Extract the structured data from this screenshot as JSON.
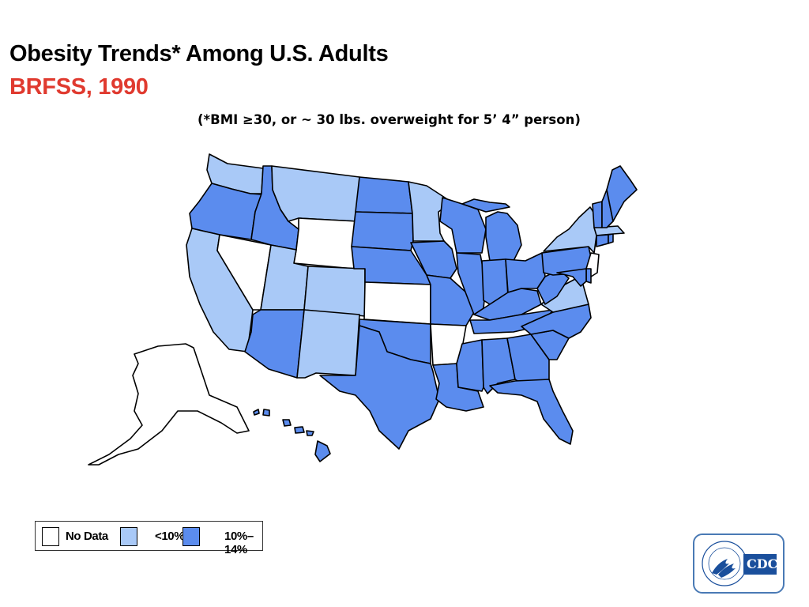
{
  "title": "Obesity Trends* Among U.S. Adults",
  "subtitle": "BRFSS, 1990",
  "note": "(*BMI ≥30, or ~ 30 lbs. overweight for 5’ 4” person)",
  "colors": {
    "title": "#000000",
    "subtitle": "#e03a2f",
    "no_data": "#ffffff",
    "lt10": "#a9c9f7",
    "p10_14": "#5b8cee",
    "border": "#000000",
    "logo_blue": "#1a4f9c"
  },
  "legend": [
    {
      "key": "no_data",
      "label": "No Data"
    },
    {
      "key": "lt10",
      "label": "<10%"
    },
    {
      "key": "p10_14",
      "label": "10%–14%"
    }
  ],
  "states": {
    "WA": "lt10",
    "OR": "p10_14",
    "CA": "lt10",
    "NV": "no_data",
    "ID": "p10_14",
    "MT": "lt10",
    "WY": "no_data",
    "UT": "lt10",
    "CO": "lt10",
    "AZ": "p10_14",
    "NM": "lt10",
    "ND": "p10_14",
    "SD": "p10_14",
    "NE": "p10_14",
    "KS": "no_data",
    "OK": "p10_14",
    "TX": "p10_14",
    "MN": "lt10",
    "IA": "p10_14",
    "MO": "p10_14",
    "AR": "no_data",
    "LA": "p10_14",
    "WI": "p10_14",
    "IL": "p10_14",
    "MI": "p10_14",
    "IN": "p10_14",
    "OH": "p10_14",
    "KY": "p10_14",
    "TN": "p10_14",
    "MS": "p10_14",
    "AL": "p10_14",
    "GA": "p10_14",
    "FL": "p10_14",
    "SC": "p10_14",
    "NC": "p10_14",
    "VA": "lt10",
    "WV": "p10_14",
    "PA": "p10_14",
    "NY": "lt10",
    "VT": "p10_14",
    "NH": "p10_14",
    "ME": "p10_14",
    "MA": "lt10",
    "RI": "p10_14",
    "CT": "p10_14",
    "NJ": "no_data",
    "DE": "p10_14",
    "MD": "p10_14",
    "AK": "no_data",
    "HI": "p10_14"
  },
  "logo": {
    "text": "CDC"
  }
}
